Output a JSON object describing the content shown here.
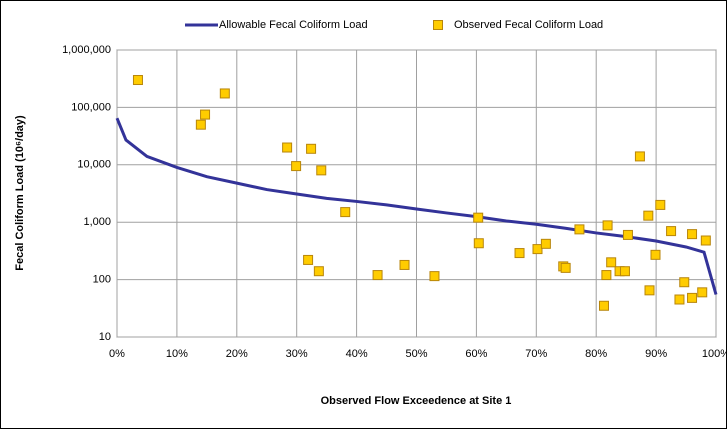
{
  "chart_data": {
    "type": "line-scatter",
    "x_label": "Observed Flow Exceedence at Site 1",
    "y_label": "Fecal Coliform Load (10⁶/day)",
    "log_y": true,
    "grid": true,
    "legend_position": "top",
    "xlim": [
      0,
      100
    ],
    "xticks": [
      {
        "value": 0,
        "label": "0%"
      },
      {
        "value": 10,
        "label": "10%"
      },
      {
        "value": 20,
        "label": "20%"
      },
      {
        "value": 30,
        "label": "30%"
      },
      {
        "value": 40,
        "label": "40%"
      },
      {
        "value": 50,
        "label": "50%"
      },
      {
        "value": 60,
        "label": "60%"
      },
      {
        "value": 70,
        "label": "70%"
      },
      {
        "value": 80,
        "label": "80%"
      },
      {
        "value": 90,
        "label": "90%"
      },
      {
        "value": 100,
        "label": "100%"
      }
    ],
    "ylim": [
      10,
      1000000
    ],
    "yticks": [
      10,
      100,
      {
        "value": 1000,
        "label": "1,000"
      },
      {
        "value": 10000,
        "label": "10,000"
      },
      {
        "value": 100000,
        "label": "100,000"
      },
      {
        "value": 1000000,
        "label": "1,000,000"
      }
    ],
    "series": [
      {
        "name": "Allowable Fecal Coliform Load",
        "kind": "line",
        "color": "#333399",
        "x": [
          0,
          1.5,
          5,
          10,
          15,
          20,
          25,
          30,
          35,
          40,
          45,
          50,
          55,
          60,
          65,
          70,
          75,
          80,
          85,
          90,
          95,
          98,
          100
        ],
        "values": [
          65000,
          27000,
          14000,
          9000,
          6200,
          4800,
          3700,
          3100,
          2600,
          2300,
          2000,
          1700,
          1450,
          1250,
          1050,
          920,
          780,
          650,
          560,
          470,
          370,
          300,
          55
        ]
      },
      {
        "name": "Observed Fecal Coliform Load",
        "kind": "scatter",
        "color": "#ffcc00",
        "x": [
          3.5,
          14.0,
          14.7,
          18.0,
          28.4,
          29.9,
          32.4,
          34.1,
          38.1,
          31.9,
          33.7,
          43.5,
          48.0,
          53.0,
          60.3,
          60.4,
          67.2,
          70.2,
          71.6,
          74.5,
          74.9,
          77.2,
          81.3,
          81.7,
          81.9,
          82.5,
          83.9,
          84.8,
          85.3,
          87.3,
          88.7,
          88.9,
          89.9,
          90.7,
          92.5,
          93.9,
          94.7,
          96.0,
          96.0,
          97.7,
          98.3
        ],
        "values": [
          300000,
          50000,
          75000,
          175000,
          20000,
          9500,
          19000,
          8000,
          1500,
          220,
          140,
          120,
          180,
          115,
          1200,
          430,
          290,
          340,
          420,
          170,
          160,
          750,
          35,
          120,
          880,
          200,
          140,
          140,
          600,
          14000,
          1300,
          65,
          270,
          2000,
          700,
          45,
          90,
          48,
          620,
          60,
          480
        ]
      }
    ]
  }
}
